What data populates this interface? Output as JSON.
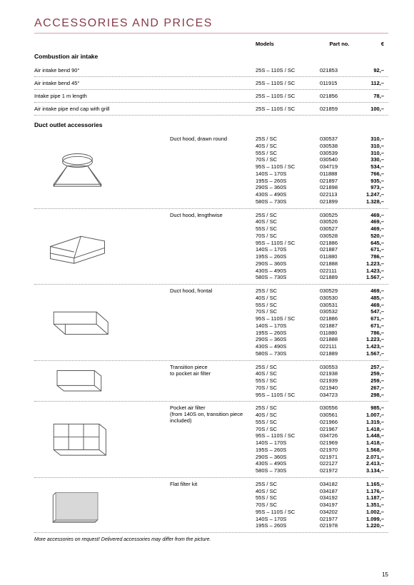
{
  "page": {
    "title": "ACCESSORIES AND PRICES",
    "footnote": "More accessories on request! Delivered accessories may differ from the picture.",
    "page_number": "15"
  },
  "columns": {
    "models": "Models",
    "part": "Part no.",
    "price": "€"
  },
  "section1": {
    "title": "Combustion air intake",
    "rows": [
      {
        "name": "Air intake bend 90°",
        "models": "25S – 110S / SC",
        "part": "021853",
        "price": "92,–"
      },
      {
        "name": "Air intake bend 45°",
        "models": "25S – 110S / SC",
        "part": "011915",
        "price": "112,–"
      },
      {
        "name": "Intake pipe 1 m length",
        "models": "25S – 110S / SC",
        "part": "021856",
        "price": "78,–"
      },
      {
        "name": "Air intake pipe end cap with grill",
        "models": "25S – 110S / SC",
        "part": "021859",
        "price": "100,–"
      }
    ]
  },
  "section2": {
    "title": "Duct outlet accessories",
    "products": [
      {
        "name": "Duct hood, drawn round",
        "variants": [
          {
            "model": "25S / SC",
            "part": "030537",
            "price": "310,–"
          },
          {
            "model": "40S / SC",
            "part": "030538",
            "price": "310,–"
          },
          {
            "model": "55S / SC",
            "part": "030539",
            "price": "310,–"
          },
          {
            "model": "70S / SC",
            "part": "030540",
            "price": "330,–"
          },
          {
            "model": "95S – 110S / SC",
            "part": "034719",
            "price": "534,–"
          },
          {
            "model": "140S – 170S",
            "part": "011888",
            "price": "766,–"
          },
          {
            "model": "195S – 260S",
            "part": "021897",
            "price": "935,–"
          },
          {
            "model": "290S – 360S",
            "part": "021898",
            "price": "973,–"
          },
          {
            "model": "430S – 490S",
            "part": "022113",
            "price": "1.247,–"
          },
          {
            "model": "580S – 730S",
            "part": "021899",
            "price": "1.328,–"
          }
        ]
      },
      {
        "name": "Duct hood, lengthwise",
        "variants": [
          {
            "model": "25S / SC",
            "part": "030525",
            "price": "469,–"
          },
          {
            "model": "40S / SC",
            "part": "030526",
            "price": "469,–"
          },
          {
            "model": "55S / SC",
            "part": "030527",
            "price": "469,–"
          },
          {
            "model": "70S / SC",
            "part": "030528",
            "price": "520,–"
          },
          {
            "model": "95S – 110S / SC",
            "part": "021886",
            "price": "645,–"
          },
          {
            "model": "140S – 170S",
            "part": "021887",
            "price": "671,–"
          },
          {
            "model": "195S – 260S",
            "part": "011880",
            "price": "786,–"
          },
          {
            "model": "290S – 360S",
            "part": "021888",
            "price": "1.223,–"
          },
          {
            "model": "430S – 490S",
            "part": "022111",
            "price": "1.423,–"
          },
          {
            "model": "580S – 730S",
            "part": "021889",
            "price": "1.567,–"
          }
        ]
      },
      {
        "name": "Duct hood, frontal",
        "variants": [
          {
            "model": "25S / SC",
            "part": "030529",
            "price": "469,–"
          },
          {
            "model": "40S / SC",
            "part": "030530",
            "price": "485,–"
          },
          {
            "model": "55S / SC",
            "part": "030531",
            "price": "469,–"
          },
          {
            "model": "70S / SC",
            "part": "030532",
            "price": "547,–"
          },
          {
            "model": "95S – 110S / SC",
            "part": "021886",
            "price": "671,–"
          },
          {
            "model": "140S – 170S",
            "part": "021887",
            "price": "671,–"
          },
          {
            "model": "195S – 260S",
            "part": "011880",
            "price": "786,–"
          },
          {
            "model": "290S – 360S",
            "part": "021888",
            "price": "1.223,–"
          },
          {
            "model": "430S – 490S",
            "part": "022111",
            "price": "1.423,–"
          },
          {
            "model": "580S – 730S",
            "part": "021889",
            "price": "1.567,–"
          }
        ]
      },
      {
        "name": "Transition piece\nto pocket air filter",
        "variants": [
          {
            "model": "25S / SC",
            "part": "030553",
            "price": "257,–"
          },
          {
            "model": "40S / SC",
            "part": "021938",
            "price": "259,–"
          },
          {
            "model": "55S / SC",
            "part": "021939",
            "price": "259,–"
          },
          {
            "model": "70S / SC",
            "part": "021940",
            "price": "267,–"
          },
          {
            "model": "95S – 110S / SC",
            "part": "034723",
            "price": "298,–"
          }
        ]
      },
      {
        "name": "Pocket air filter\n(from 140S on, transition piece included)",
        "variants": [
          {
            "model": "25S / SC",
            "part": "030556",
            "price": "985,–"
          },
          {
            "model": "40S / SC",
            "part": "030561",
            "price": "1.007,–"
          },
          {
            "model": "55S / SC",
            "part": "021966",
            "price": "1.319,–"
          },
          {
            "model": "70S / SC",
            "part": "021967",
            "price": "1.418,–"
          },
          {
            "model": "95S – 110S / SC",
            "part": "034726",
            "price": "1.448,–"
          },
          {
            "model": "140S – 170S",
            "part": "021969",
            "price": "1.418,–"
          },
          {
            "model": "195S – 260S",
            "part": "021970",
            "price": "1.568,–"
          },
          {
            "model": "290S – 360S",
            "part": "021971",
            "price": "2.071,–"
          },
          {
            "model": "430S – 490S",
            "part": "022127",
            "price": "2.413,–"
          },
          {
            "model": "580S – 730S",
            "part": "021972",
            "price": "3.134,–"
          }
        ]
      },
      {
        "name": "Flat filter kit",
        "variants": [
          {
            "model": "25S / SC",
            "part": "034182",
            "price": "1.165,–"
          },
          {
            "model": "40S / SC",
            "part": "034187",
            "price": "1.176,–"
          },
          {
            "model": "55S / SC",
            "part": "034192",
            "price": "1.187,–"
          },
          {
            "model": "70S / SC",
            "part": "034197",
            "price": "1.351,–"
          },
          {
            "model": "95S – 110S / SC",
            "part": "034202",
            "price": "1.002,–"
          },
          {
            "model": "140S – 170S",
            "part": "021977",
            "price": "1.099,–"
          },
          {
            "model": "195S – 260S",
            "part": "021978",
            "price": "1.220,–"
          }
        ]
      }
    ]
  }
}
